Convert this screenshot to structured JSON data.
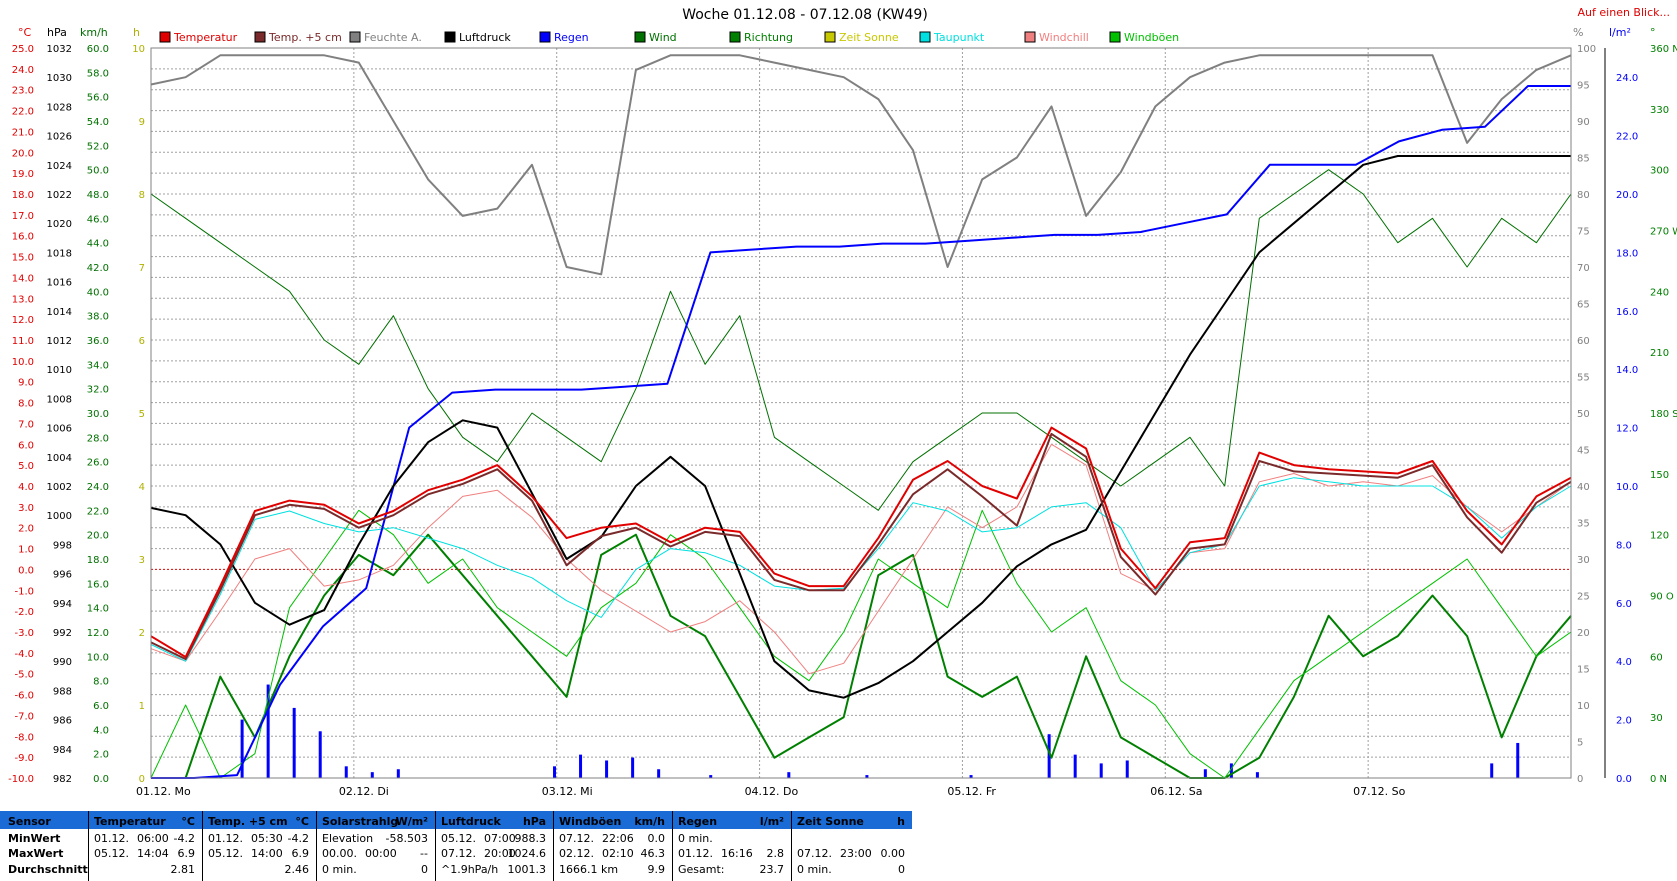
{
  "title": "Woche 01.12.08 - 07.12.08 (KW49)",
  "top_right_link": "Auf einen Blick...",
  "chart_data": {
    "type": "line",
    "title": "Woche 01.12.08 - 07.12.08 (KW49)",
    "days": [
      "01.12. Mo",
      "02.12. Di",
      "03.12. Mi",
      "04.12. Do",
      "05.12. Fr",
      "06.12. Sa",
      "07.12. So"
    ],
    "legend": [
      {
        "name": "Temperatur",
        "color": "#e00000"
      },
      {
        "name": "Temp. +5 cm",
        "color": "#7a2a2a"
      },
      {
        "name": "Feuchte A.",
        "color": "#808080"
      },
      {
        "name": "Luftdruck",
        "color": "#000000"
      },
      {
        "name": "Regen",
        "color": "#0000ff"
      },
      {
        "name": "Wind",
        "color": "#007000"
      },
      {
        "name": "Richtung",
        "color": "#008000"
      },
      {
        "name": "Zeit Sonne",
        "color": "#c8c800"
      },
      {
        "name": "Taupunkt",
        "color": "#00e0e0"
      },
      {
        "name": "Windchill",
        "color": "#f08080"
      },
      {
        "name": "Windböen",
        "color": "#00c000"
      }
    ],
    "axes": {
      "temp": {
        "unit": "°C",
        "color": "#e00000",
        "min": -10,
        "max": 25,
        "step": 1
      },
      "pressure": {
        "unit": "hPa",
        "color": "#000000",
        "min": 982,
        "max": 1032,
        "step": 2
      },
      "wind": {
        "unit": "km/h",
        "color": "#007000",
        "min": 0,
        "max": 60,
        "step": 2
      },
      "sun": {
        "unit": "h",
        "color": "#b0b000",
        "min": 0,
        "max": 10,
        "step": 1
      },
      "humidity": {
        "unit": "%",
        "color": "#808080",
        "min": 0,
        "max": 100,
        "step": 5
      },
      "rain": {
        "unit": "l/m²",
        "color": "#0000ff",
        "min": 0,
        "max": 25,
        "step": 2
      },
      "direction": {
        "unit": "°",
        "color": "#008000",
        "min": 0,
        "max": 360,
        "step": 30,
        "labels": [
          "0 N",
          "30",
          "60",
          "90 O",
          "120",
          "150",
          "180 S",
          "210",
          "240",
          "270 W",
          "300",
          "330",
          "360 N"
        ]
      }
    },
    "series": [
      {
        "name": "Temperatur",
        "axis": "temp",
        "color": "#e00000",
        "width": 2,
        "values": [
          -3.2,
          -4.2,
          -0.8,
          2.8,
          3.3,
          3.1,
          2.2,
          2.8,
          3.8,
          4.3,
          5.0,
          3.5,
          1.5,
          2.0,
          2.2,
          1.3,
          2.0,
          1.8,
          -0.2,
          -0.8,
          -0.8,
          1.5,
          4.3,
          5.2,
          4.0,
          3.4,
          6.8,
          5.8,
          1.0,
          -0.9,
          1.3,
          1.5,
          5.6,
          5.0,
          4.8,
          4.7,
          4.6,
          5.2,
          2.8,
          1.2,
          3.5,
          4.4
        ]
      },
      {
        "name": "Temp. +5 cm",
        "axis": "temp",
        "color": "#7a2a2a",
        "width": 2,
        "values": [
          -3.5,
          -4.3,
          -1.0,
          2.6,
          3.1,
          2.9,
          2.0,
          2.6,
          3.6,
          4.1,
          4.8,
          3.3,
          0.2,
          1.6,
          2.0,
          1.1,
          1.8,
          1.6,
          -0.5,
          -1.0,
          -1.0,
          1.2,
          3.6,
          4.8,
          3.5,
          2.1,
          6.5,
          5.4,
          0.6,
          -1.2,
          1.0,
          1.2,
          5.2,
          4.7,
          4.6,
          4.5,
          4.4,
          5.0,
          2.5,
          0.8,
          3.2,
          4.2
        ]
      },
      {
        "name": "Feuchte A.",
        "axis": "humidity",
        "color": "#808080",
        "width": 2,
        "values": [
          95,
          96,
          99,
          99,
          99,
          99,
          98,
          90,
          82,
          77,
          78,
          84,
          70,
          69,
          97,
          99,
          99,
          99,
          98,
          97,
          96,
          93,
          86,
          70,
          82,
          85,
          92,
          77,
          83,
          92,
          96,
          98,
          99,
          99,
          99,
          99,
          99,
          99,
          87,
          93,
          97,
          99
        ]
      },
      {
        "name": "Luftdruck",
        "axis": "pressure",
        "color": "#000000",
        "width": 2,
        "values": [
          1000.5,
          1000,
          998,
          994,
          992.5,
          993.5,
          998,
          1002,
          1005,
          1006.5,
          1006,
          1001.5,
          997,
          998.5,
          1002,
          1004,
          1002,
          996,
          990,
          988,
          987.5,
          988.5,
          990,
          992,
          994,
          996.5,
          998,
          999,
          1003,
          1007,
          1011,
          1014.5,
          1018,
          1020,
          1022,
          1024,
          1024.6,
          1024.6,
          1024.6,
          1024.6,
          1024.6,
          1024.6
        ]
      },
      {
        "name": "Regen",
        "axis": "rain",
        "color": "#0000ff",
        "width": 2,
        "values": [
          0,
          0,
          0.1,
          3.2,
          5.2,
          6.5,
          12,
          13.2,
          13.3,
          13.3,
          13.3,
          13.4,
          13.5,
          18.0,
          18.1,
          18.2,
          18.2,
          18.3,
          18.3,
          18.4,
          18.5,
          18.6,
          18.6,
          18.7,
          19.0,
          19.3,
          21.0,
          21.0,
          21.0,
          21.8,
          22.2,
          22.3,
          23.7,
          23.7
        ]
      },
      {
        "name": "Wind",
        "axis": "wind",
        "color": "#007000",
        "width": 1,
        "values": [
          48,
          46,
          44,
          42,
          40,
          36,
          34,
          38,
          32,
          28,
          26,
          30,
          28,
          26,
          32,
          40,
          34,
          38,
          28,
          26,
          24,
          22,
          26,
          28,
          30,
          30,
          28,
          26,
          24,
          26,
          28,
          24,
          46,
          48,
          50,
          48,
          44,
          46,
          42,
          46,
          44,
          48
        ]
      },
      {
        "name": "Windböen",
        "axis": "wind",
        "color": "#00c000",
        "width": 1,
        "values": [
          0,
          6,
          0,
          2,
          14,
          18,
          22,
          20,
          16,
          18,
          14,
          12,
          10,
          14,
          16,
          20,
          18,
          14,
          10,
          8,
          12,
          18,
          16,
          14,
          22,
          16,
          12,
          14,
          8,
          6,
          2,
          0,
          4,
          8,
          10,
          12,
          14,
          16,
          18,
          14,
          10,
          12
        ]
      },
      {
        "name": "Taupunkt",
        "axis": "temp",
        "color": "#00e0e0",
        "width": 1,
        "values": [
          -3.6,
          -4.4,
          -1.2,
          2.4,
          2.8,
          2.2,
          1.8,
          2.0,
          1.5,
          1.0,
          0.2,
          -0.4,
          -1.5,
          -2.3,
          0.0,
          1.0,
          0.8,
          0.2,
          -0.8,
          -1.0,
          -0.9,
          1.0,
          3.2,
          2.8,
          1.8,
          2.0,
          3.0,
          3.2,
          2.0,
          -1.0,
          0.8,
          1.2,
          4.0,
          4.4,
          4.2,
          4.0,
          4.0,
          4.0,
          3.0,
          1.5,
          3.0,
          4.0
        ]
      },
      {
        "name": "Windchill",
        "axis": "temp",
        "color": "#f08080",
        "width": 1,
        "values": [
          -3.8,
          -4.4,
          -2.0,
          0.5,
          1.0,
          -0.8,
          -0.5,
          0.2,
          2.0,
          3.5,
          3.8,
          2.5,
          0.5,
          -1.0,
          -2.0,
          -3.0,
          -2.5,
          -1.5,
          -3.0,
          -5.0,
          -4.5,
          -2.0,
          0.5,
          3.0,
          2.0,
          3.0,
          6.0,
          5.0,
          -0.2,
          -1.0,
          0.8,
          1.0,
          4.2,
          4.6,
          4.0,
          4.2,
          4.0,
          4.5,
          3.0,
          1.8,
          3.0,
          4.2
        ]
      },
      {
        "name": "Richtung",
        "axis": "direction",
        "color": "#008000",
        "width": 2,
        "values": [
          0,
          0,
          50,
          20,
          60,
          90,
          110,
          100,
          120,
          100,
          80,
          60,
          40,
          110,
          120,
          80,
          70,
          40,
          10,
          20,
          30,
          100,
          110,
          50,
          40,
          50,
          10,
          60,
          20,
          10,
          0,
          0,
          10,
          40,
          80,
          60,
          70,
          90,
          70,
          20,
          60,
          80
        ]
      }
    ],
    "rain_bars": [
      0,
      0,
      0,
      2,
      3.2,
      2.4,
      1.6,
      0.4,
      0.2,
      0.3,
      0,
      0,
      0,
      0,
      0,
      0.4,
      0.8,
      0.6,
      0.7,
      0.3,
      0,
      0.1,
      0,
      0,
      0.2,
      0,
      0,
      0.1,
      0,
      0,
      0,
      0.1,
      0,
      0,
      1.5,
      0.8,
      0.5,
      0.6,
      0,
      0,
      0.3,
      0.5,
      0.2,
      0,
      0,
      0,
      0,
      0,
      0,
      0,
      0,
      0.5,
      1.2,
      0
    ]
  },
  "stats": {
    "rows_header": [
      "Sensor",
      "MinWert",
      "MaxWert",
      "Durchschnitt"
    ],
    "temperatur": {
      "title": "Temperatur",
      "unit": "°C",
      "min": [
        "01.12.",
        "06:00",
        "-4.2"
      ],
      "max": [
        "05.12.",
        "14:04",
        "6.9"
      ],
      "avg": "2.81"
    },
    "temp5": {
      "title": "Temp. +5 cm",
      "unit": "°C",
      "min": [
        "01.12.",
        "05:30",
        "-4.2"
      ],
      "max": [
        "05.12.",
        "14:00",
        "6.9"
      ],
      "avg": "2.46"
    },
    "solar": {
      "title": "Solarstrahlg",
      "unit": "W/m²",
      "min": [
        "Elevation",
        "-58.503"
      ],
      "max": [
        "00.00.",
        "00:00",
        "--"
      ],
      "avg": [
        "0 min.",
        "0"
      ]
    },
    "luftdruck": {
      "title": "Luftdruck",
      "unit": "hPa",
      "min": [
        "05.12.",
        "07:00",
        "988.3"
      ],
      "max": [
        "07.12.",
        "20:00",
        "1024.6"
      ],
      "avg": [
        "^1.9hPa/h",
        "1001.3"
      ]
    },
    "windboeen": {
      "title": "Windböen",
      "unit": "km/h",
      "min": [
        "07.12.",
        "22:06",
        "0.0"
      ],
      "max": [
        "02.12.",
        "02:10",
        "46.3"
      ],
      "avg": [
        "1666.1 km",
        "9.9"
      ]
    },
    "regen": {
      "title": "Regen",
      "unit": "l/m²",
      "min": [
        "0 min."
      ],
      "max": [
        "01.12.",
        "16:16",
        "2.8"
      ],
      "avg": [
        "Gesamt:",
        "23.7"
      ]
    },
    "sonne": {
      "title": "Zeit Sonne",
      "unit": "h",
      "min": [
        ""
      ],
      "max": [
        "07.12.",
        "23:00",
        "0.00"
      ],
      "avg": [
        "0 min.",
        "0"
      ]
    }
  }
}
